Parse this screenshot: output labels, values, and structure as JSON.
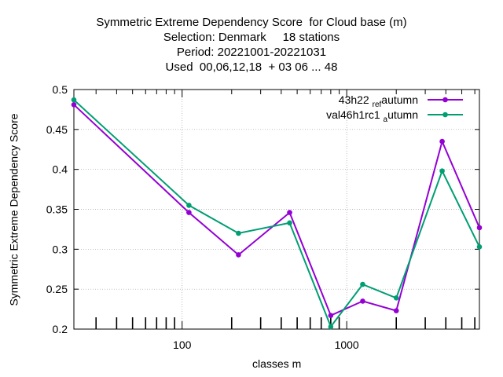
{
  "chart_data": {
    "type": "line",
    "title_lines": [
      "Symmetric Extreme Dependency Score  for Cloud base (m)",
      "Selection: Denmark     18 stations",
      "Period: 20221001-20221031",
      "Used  00,06,12,18  + 03 06 ... 48"
    ],
    "xlabel": "classes m",
    "ylabel": "Symmetric Extreme Dependency Score",
    "x_scale": "log",
    "xlim": [
      22,
      6400
    ],
    "ylim": [
      0.2,
      0.5
    ],
    "x_ticks": [
      100,
      1000
    ],
    "x_tick_labels": [
      "100",
      "1000"
    ],
    "y_ticks": [
      0.2,
      0.25,
      0.3,
      0.35,
      0.4,
      0.45,
      0.5
    ],
    "y_tick_labels": [
      "0.2",
      "0.25",
      "0.3",
      "0.35",
      "0.4",
      "0.45",
      "0.5"
    ],
    "grid": true,
    "legend_position": "top-right",
    "series": [
      {
        "name": "43h22_ref_autumn",
        "legend_parts": [
          {
            "t": "43h22 ",
            "sub": false
          },
          {
            "t": "ref",
            "sub": true
          },
          {
            "t": "a",
            "sub": false
          },
          {
            "t": "utumn",
            "sub": false
          }
        ],
        "color": "#9400d3",
        "x": [
          22,
          110,
          220,
          450,
          800,
          1250,
          2000,
          3800,
          6400
        ],
        "y": [
          0.481,
          0.346,
          0.293,
          0.346,
          0.217,
          0.235,
          0.223,
          0.435,
          0.327
        ]
      },
      {
        "name": "val46h1rc1_autumn",
        "legend_parts": [
          {
            "t": "val46h1rc1 ",
            "sub": false
          },
          {
            "t": "a",
            "sub": true
          },
          {
            "t": "utumn",
            "sub": false
          }
        ],
        "color": "#009e73",
        "x": [
          22,
          110,
          220,
          450,
          800,
          1250,
          2000,
          3800,
          6400
        ],
        "y": [
          0.487,
          0.355,
          0.32,
          0.333,
          0.203,
          0.256,
          0.239,
          0.398,
          0.303
        ]
      }
    ]
  }
}
